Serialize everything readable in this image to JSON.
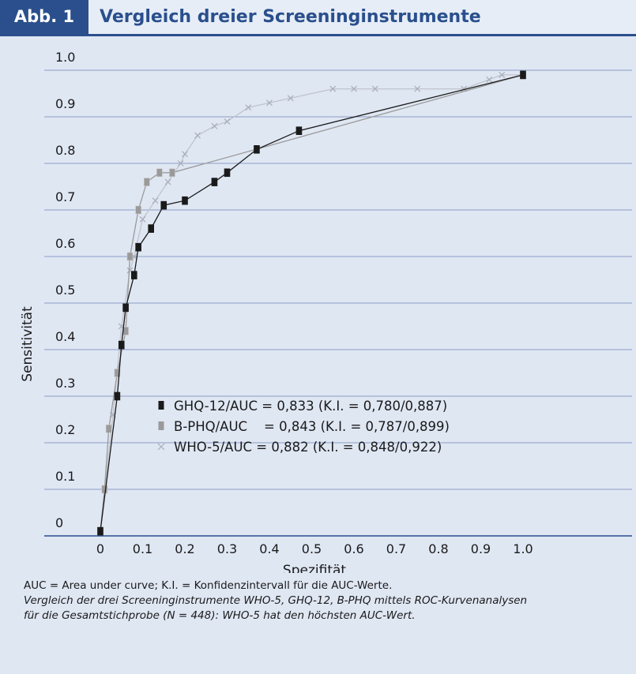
{
  "header": {
    "tag": "Abb. 1",
    "title": "Vergleich dreier Screeninginstrumente"
  },
  "chart_data": {
    "type": "line",
    "xlabel": "Spezifität",
    "ylabel": "Sensitivität",
    "xlim": [
      0,
      1.0
    ],
    "ylim": [
      0,
      1.0
    ],
    "x_ticks": [
      "0",
      "0.1",
      "0.2",
      "0.3",
      "0.4",
      "0.5",
      "0.6",
      "0.7",
      "0.8",
      "0.9",
      "1.0"
    ],
    "y_ticks": [
      "0",
      "0.1",
      "0.2",
      "0.3",
      "0.4",
      "0.5",
      "0.6",
      "0.7",
      "0.8",
      "0.9",
      "1.0"
    ],
    "grid": "horizontal",
    "legend_position": "center",
    "series": [
      {
        "name": "GHQ-12/AUC = 0,833 (K.I. = 0,780/0,887)",
        "color": "#1a1a1a",
        "marker": "square",
        "x": [
          0,
          0.04,
          0.05,
          0.06,
          0.08,
          0.09,
          0.12,
          0.15,
          0.2,
          0.27,
          0.3,
          0.37,
          0.47,
          1.0
        ],
        "y": [
          0.01,
          0.3,
          0.41,
          0.49,
          0.56,
          0.62,
          0.66,
          0.71,
          0.72,
          0.76,
          0.78,
          0.83,
          0.87,
          0.99
        ]
      },
      {
        "name": "B-PHQ/AUC    = 0,843 (K.I. = 0,787/0,899)",
        "color": "#9a9a9a",
        "marker": "square",
        "x": [
          0,
          0.01,
          0.02,
          0.04,
          0.06,
          0.07,
          0.09,
          0.11,
          0.14,
          0.17,
          1.0
        ],
        "y": [
          0.01,
          0.1,
          0.23,
          0.35,
          0.44,
          0.6,
          0.7,
          0.76,
          0.78,
          0.78,
          0.99
        ]
      },
      {
        "name": "WHO-5/AUC = 0,882 (K.I. = 0,848/0,922)",
        "color": "#c0c4cc",
        "marker": "x",
        "x": [
          0,
          0.01,
          0.03,
          0.05,
          0.07,
          0.08,
          0.1,
          0.13,
          0.16,
          0.19,
          0.2,
          0.23,
          0.27,
          0.3,
          0.35,
          0.4,
          0.45,
          0.55,
          0.6,
          0.65,
          0.75,
          0.86,
          0.92,
          0.95,
          1.0
        ],
        "y": [
          0.01,
          0.1,
          0.26,
          0.45,
          0.57,
          0.6,
          0.68,
          0.72,
          0.76,
          0.8,
          0.82,
          0.86,
          0.88,
          0.89,
          0.92,
          0.93,
          0.94,
          0.96,
          0.96,
          0.96,
          0.96,
          0.96,
          0.98,
          0.99,
          0.99
        ]
      }
    ]
  },
  "caption": {
    "line1": "AUC = Area under curve; K.I. = Konfidenzintervall für die AUC-Werte.",
    "line2": "Vergleich der drei Screeninginstrumente WHO-5, GHQ-12, B-PHQ mittels ROC-Kurvenanalysen",
    "line3": "für die Gesamtstichprobe (N = 448): WHO-5 hat den höchsten AUC-Wert."
  }
}
